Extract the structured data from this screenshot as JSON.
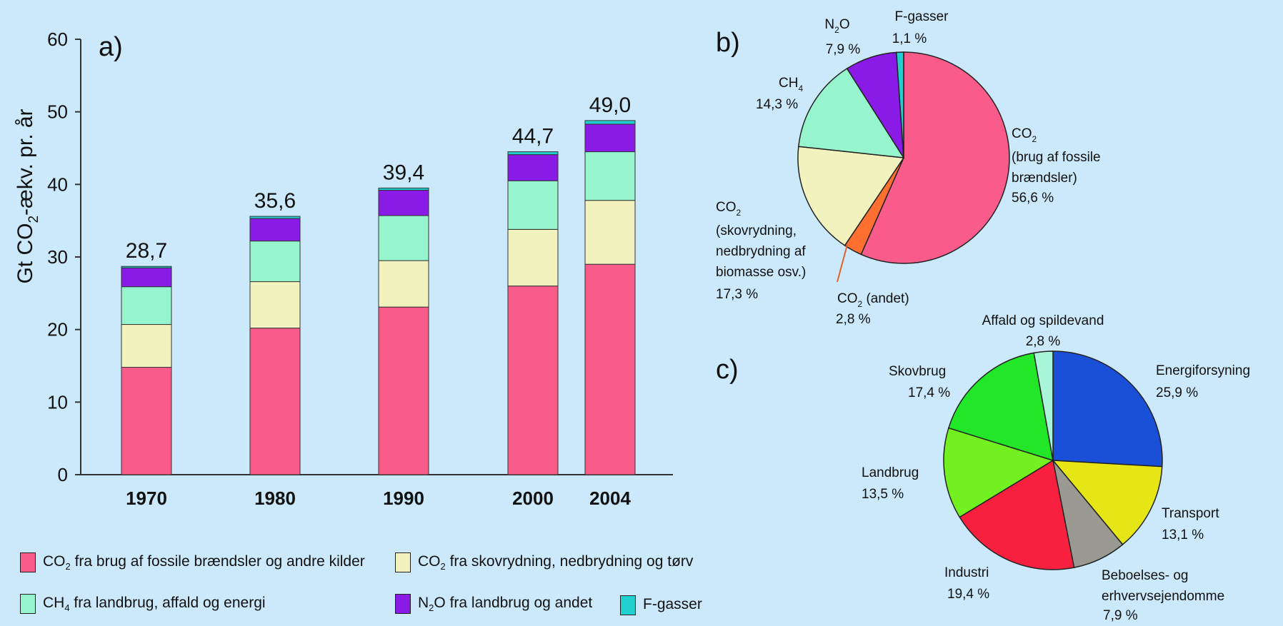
{
  "chart_data": [
    {
      "panel": "a)",
      "type": "bar",
      "stacked": true,
      "ylabel": "Gt CO₂-ækv. pr. år",
      "ylim": [
        0,
        60
      ],
      "yticks": [
        0,
        10,
        20,
        30,
        40,
        50,
        60
      ],
      "categories": [
        "1970",
        "1980",
        "1990",
        "2000",
        "2004"
      ],
      "totals": [
        "28,7",
        "35,6",
        "39,4",
        "44,7",
        "49,0"
      ],
      "series": [
        {
          "name": "CO₂ fra brug af fossile brændsler og andre kilder",
          "color": "#f95c8b",
          "values": [
            14.8,
            20.2,
            23.1,
            26.0,
            29.0
          ]
        },
        {
          "name": "CO₂ fra skovrydning, nedbrydning og tørv",
          "color": "#f2f2bf",
          "values": [
            5.9,
            6.4,
            6.4,
            7.8,
            8.8
          ]
        },
        {
          "name": "CH₄ fra landbrug, affald og energi",
          "color": "#96f5cc",
          "values": [
            5.2,
            5.6,
            6.2,
            6.7,
            6.7
          ]
        },
        {
          "name": "N₂O fra landbrug og andet",
          "color": "#8a1ae6",
          "values": [
            2.6,
            3.1,
            3.5,
            3.6,
            3.8
          ]
        },
        {
          "name": "F-gasser",
          "color": "#22cfd0",
          "values": [
            0.2,
            0.3,
            0.3,
            0.4,
            0.5
          ]
        }
      ]
    },
    {
      "panel": "b)",
      "type": "pie",
      "slices": [
        {
          "label": "CO₂ (brug af fossile brændsler)",
          "value_text": "56,6 %",
          "value": 56.6,
          "color": "#f95c8b"
        },
        {
          "label": "CO₂ (andet)",
          "value_text": "2,8 %",
          "value": 2.8,
          "color": "#ff7030"
        },
        {
          "label": "CO₂ (skovrydning, nedbrydning af biomasse osv.)",
          "value_text": "17,3 %",
          "value": 17.3,
          "color": "#f2f2bf"
        },
        {
          "label": "CH₄",
          "value_text": "14,3 %",
          "value": 14.3,
          "color": "#96f5cc"
        },
        {
          "label": "N₂O",
          "value_text": "7,9 %",
          "value": 7.9,
          "color": "#8a1ae6"
        },
        {
          "label": "F-gasser",
          "value_text": "1,1 %",
          "value": 1.1,
          "color": "#22cfd0"
        }
      ]
    },
    {
      "panel": "c)",
      "type": "pie",
      "slices": [
        {
          "label": "Energiforsyning",
          "value_text": "25,9 %",
          "value": 25.9,
          "color": "#1a4fd8"
        },
        {
          "label": "Transport",
          "value_text": "13,1 %",
          "value": 13.1,
          "color": "#e6e616"
        },
        {
          "label": "Beboelses- og erhvervsejendomme",
          "value_text": "7,9 %",
          "value": 7.9,
          "color": "#9a9a92"
        },
        {
          "label": "Industri",
          "value_text": "19,4 %",
          "value": 19.4,
          "color": "#f8203f"
        },
        {
          "label": "Landbrug",
          "value_text": "13,5 %",
          "value": 13.5,
          "color": "#73f020"
        },
        {
          "label": "Skovbrug",
          "value_text": "17,4 %",
          "value": 17.4,
          "color": "#22e628"
        },
        {
          "label": "Affald og spildevand",
          "value_text": "2,8 %",
          "value": 2.8,
          "color": "#a8f5d8"
        }
      ]
    }
  ],
  "legend": [
    {
      "pre": "CO",
      "sub": "2",
      "post": " fra brug af fossile brændsler og andre kilder",
      "color": "#f95c8b"
    },
    {
      "pre": "CO",
      "sub": "2",
      "post": " fra skovrydning, nedbrydning og tørv",
      "color": "#f2f2bf"
    },
    {
      "pre": "CH",
      "sub": "4",
      "post": " fra landbrug, affald og energi",
      "color": "#96f5cc"
    },
    {
      "pre": "N",
      "sub": "2",
      "post": "O fra landbrug og andet",
      "color": "#8a1ae6"
    },
    {
      "pre": "F-gasser",
      "sub": "",
      "post": "",
      "color": "#22cfd0"
    }
  ]
}
